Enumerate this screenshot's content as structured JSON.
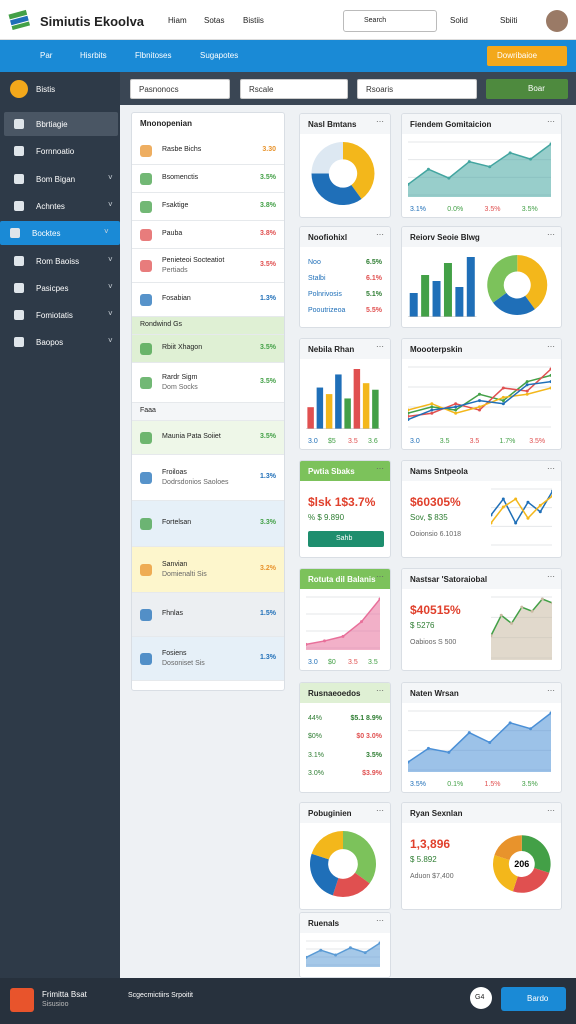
{
  "header": {
    "title": "Simiutis Ekoolva",
    "nav": [
      "Hiam",
      "Sotas",
      "Bistiis"
    ],
    "search": "Search",
    "actions": [
      "Solid",
      "Sbiiti"
    ]
  },
  "topnav": {
    "tabs": [
      "Par",
      "Hisrbits",
      "Flbnitoses",
      "Sugapotes"
    ],
    "button": "Dowribaioe"
  },
  "sidebar": {
    "account": "Bistis",
    "items": [
      "Bbrtiagie",
      "Fornnoatio",
      "Bom Bigan",
      "Achntes",
      "Bocktes",
      "Rom Baoiss",
      "Pasicpes",
      "Fomiotatis",
      "Baopos"
    ],
    "active": 4
  },
  "filters": {
    "selects": [
      "Pasnonocs",
      "Rscale",
      "Rsoaris"
    ],
    "button": "Boar"
  },
  "list": {
    "title": "Mnonopenian",
    "items": [
      {
        "name": "Rasbe Bichs",
        "value": "3.30",
        "value_color": "#e8932c"
      },
      {
        "name": "Bsomenctis",
        "value": "3.5%",
        "value_color": "#43a047"
      },
      {
        "name": "Fsaktige",
        "value": "3.8%",
        "value_color": "#43a047"
      },
      {
        "name": "Pauba",
        "value": "3.8%",
        "value_color": "#e05050"
      },
      {
        "name": "Penieteoi Socteatiot",
        "sub": "Pertiads",
        "value": "3.5%",
        "value_color": "#e05050"
      },
      {
        "name": "Fosabian",
        "value": "1.3%",
        "value_color": "#1f6fb8"
      },
      {
        "name": "Rondwind Gs",
        "bg": "#dff0d4"
      },
      {
        "name": "Rbiit Xhagon",
        "value": "3.5%",
        "value_color": "#43a047",
        "bg": "#dff0d4"
      },
      {
        "name": "Rardr Sigm",
        "sub": "Dom Socks",
        "value": "3.5%",
        "value_color": "#43a047"
      },
      {
        "name": "Faaa",
        "bg": "#f4f6f8"
      },
      {
        "name": "Maunia Pata Soiiet",
        "value": "3.5%",
        "value_color": "#43a047",
        "bg": "#eef7e8"
      },
      {
        "name": "Froiloas",
        "sub": "Dodrsdonios Saoloes",
        "value": "1.3%",
        "value_color": "#1f6fb8"
      },
      {
        "name": "Fortelsan",
        "value": "3.3%",
        "value_color": "#43a047",
        "bg": "#e6f0f8"
      },
      {
        "name": "Sanvian",
        "sub": "Domienalti Sis",
        "value": "3.2%",
        "value_color": "#e8932c",
        "bg": "#fdf6cc"
      },
      {
        "name": "Fhnlas",
        "value": "1.5%",
        "value_color": "#1f6fb8",
        "bg": "#eceff2"
      },
      {
        "name": "Fosiens",
        "sub": "Dosoniset Sis",
        "value": "1.3%",
        "value_color": "#1f6fb8",
        "bg": "#e6f0f8"
      }
    ]
  },
  "cards": [
    {
      "title": "Nasl Bmtans",
      "chart": [
        {
          "kind": "donut",
          "values": [
            40,
            35,
            25
          ],
          "colors": [
            "#f3b71b",
            "#1f6fb8",
            "#dde8f2"
          ]
        }
      ]
    },
    {
      "title": "Noofiohixl",
      "rows": [
        [
          "Noo",
          "6.5%"
        ],
        [
          "Stalbi",
          "6.1%"
        ],
        [
          "Polnrivosis",
          "5.1%"
        ],
        [
          "Pooutrizeoa",
          "5.5%"
        ]
      ]
    },
    {
      "title": "Nebila Rhan",
      "chart": [
        {
          "kind": "bar",
          "values": [
            20,
            38,
            32,
            50,
            28,
            55,
            42,
            36
          ],
          "colors": [
            "#e05050",
            "#1f6fb8",
            "#f3b71b",
            "#1f6fb8",
            "#43a047",
            "#e05050",
            "#f3b71b",
            "#43a047"
          ]
        }
      ],
      "foot": [
        "3.0",
        "$5",
        "3.5",
        "3.6"
      ]
    },
    {
      "title": "Pwtia Sbaks",
      "head_color": "#7cc25b",
      "big": "$lsk 1$3.7%",
      "sub": "% $ 9.890",
      "button": "Sahb"
    },
    {
      "title": "Rotuta dil Balanis",
      "head_color": "#7cc25b",
      "chart": [
        {
          "kind": "area",
          "values": [
            5,
            8,
            12,
            25,
            45
          ],
          "color": "#e8709a"
        }
      ],
      "foot": [
        "3.0",
        "$0",
        "3.5",
        "3.5"
      ]
    },
    {
      "title": "Rusnaeoedos",
      "head_color": "#dff0d4",
      "rows": [
        [
          "44%",
          "$5.1 8.9%"
        ],
        [
          "$0%",
          "$0 3.0%"
        ],
        [
          "3.1%",
          "3.5%"
        ],
        [
          "3.0%",
          "$3.9%"
        ]
      ]
    },
    {
      "title": "Pobuginien",
      "chart": [
        {
          "kind": "donut",
          "values": [
            35,
            20,
            25,
            20
          ],
          "colors": [
            "#7cc25b",
            "#e05050",
            "#1f6fb8",
            "#f3b71b"
          ]
        }
      ]
    },
    {
      "title": "Ruenals",
      "chart": [
        {
          "kind": "area",
          "values": [
            8,
            14,
            10,
            16,
            12,
            20
          ],
          "color": "#5b9bd5"
        }
      ]
    },
    {
      "title": "Fiendem Gomitaicion",
      "chart": [
        {
          "kind": "area",
          "values": [
            10,
            22,
            15,
            28,
            24,
            35,
            30,
            42
          ],
          "color": "#43a5a0"
        }
      ],
      "foot": [
        "3.1%",
        "0.0%",
        "3.5%",
        "3.5%"
      ]
    },
    {
      "title": "Reiorv Seoie Blwg",
      "chart": [
        {
          "kind": "bar",
          "values": [
            20,
            35,
            30,
            45,
            25,
            50
          ],
          "colors": [
            "#1f6fb8",
            "#43a047",
            "#1f6fb8",
            "#43a047",
            "#1f6fb8",
            "#1f6fb8"
          ]
        },
        {
          "kind": "donut",
          "values": [
            40,
            25,
            35
          ],
          "colors": [
            "#f3b71b",
            "#1f6fb8",
            "#7cc25b"
          ]
        }
      ]
    },
    {
      "title": "Moooterpskin",
      "chart": [
        {
          "kind": "lines",
          "series": [
            {
              "color": "#43a047",
              "values": [
                10,
                14,
                12,
                22,
                18,
                30,
                34
              ]
            },
            {
              "color": "#e05050",
              "values": [
                8,
                10,
                16,
                12,
                26,
                24,
                38
              ]
            },
            {
              "color": "#f3b71b",
              "values": [
                12,
                16,
                10,
                14,
                20,
                22,
                26
              ]
            },
            {
              "color": "#1f6fb8",
              "values": [
                6,
                12,
                14,
                18,
                16,
                28,
                30
              ]
            }
          ]
        }
      ],
      "foot": [
        "3.0",
        "3.5",
        "3.5",
        "1.7%",
        "3.5%"
      ]
    },
    {
      "title": "Nams Sntpeola",
      "big": "$60305%",
      "sub": "Sov, $ 835",
      "sub2": "Ooionsio 6.1018",
      "chart": [
        {
          "kind": "lines",
          "series": [
            {
              "color": "#1f6fb8",
              "values": [
                20,
                30,
                15,
                28,
                22,
                35
              ]
            },
            {
              "color": "#f3b71b",
              "values": [
                15,
                25,
                30,
                18,
                26,
                32
              ]
            }
          ]
        }
      ]
    },
    {
      "title": "Nastsar 'Satoraiobal",
      "big": "$40515%",
      "sub": "$ 5276",
      "sub2": "Oabioos S 500",
      "chart": [
        {
          "kind": "area",
          "values": [
            12,
            22,
            18,
            26,
            24,
            30,
            28
          ],
          "color": "#c9b9a2"
        }
      ]
    },
    {
      "title": "Naten Wrsan",
      "chart": [
        {
          "kind": "area",
          "values": [
            5,
            12,
            10,
            20,
            15,
            25,
            22,
            30
          ],
          "color": "#4a8fd6"
        }
      ],
      "foot": [
        "3.5%",
        "0.1%",
        "1.5%",
        "3.5%"
      ]
    },
    {
      "title": "Ryan Sexnlan",
      "big": "1,3,896",
      "sub": "$ 5.892",
      "sub2": "Aduon $7,400",
      "chart": [
        {
          "kind": "donut",
          "values": [
            30,
            25,
            25,
            20
          ],
          "colors": [
            "#43a047",
            "#e05050",
            "#f3b71b",
            "#e8932c"
          ],
          "center": "206"
        }
      ]
    }
  ],
  "footer": {
    "title": "Frimitta Bsat",
    "sub": "Sisusioo",
    "status": "Scgecmictiirs Srpoitit",
    "badge": "G4",
    "button": "Bardo"
  }
}
